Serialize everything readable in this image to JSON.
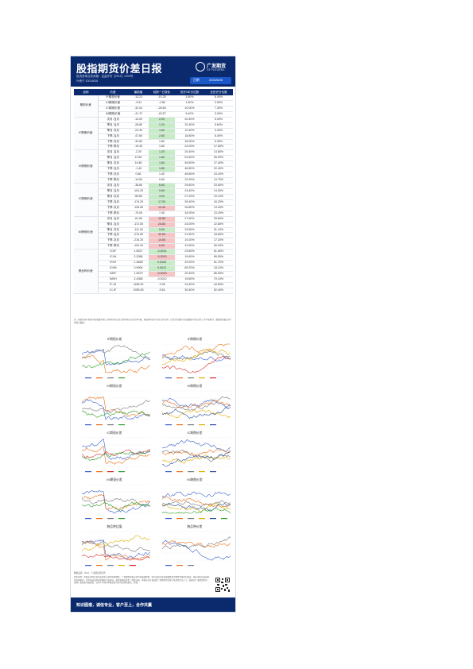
{
  "header": {
    "title": "股指期货价差日报",
    "logo_name": "广发期货",
    "logo_sub": "GF FUTURES",
    "sub1": "投资咨询业务资格：证监许可【2011】1292号",
    "sub2": "叶倩宁 Z0016628",
    "date_label": "日期",
    "date_value": "2025/6/26"
  },
  "table": {
    "columns": [
      "品种",
      "价差",
      "最新值",
      "较前一日变化",
      "历史1年分位数",
      "全历史分位数"
    ],
    "groups": [
      {
        "name": "期现价差",
        "rows": [
          [
            "IF期现价差",
            "-13.21",
            "-10.25",
            "1.60%",
            "6.40%",
            ""
          ],
          [
            "IH期现价差",
            "-3.51",
            "-2.88",
            "1.60%",
            "3.90%",
            ""
          ],
          [
            "IC期现价差",
            "-32.04",
            "-28.65",
            "10.00%",
            "7.30%",
            ""
          ],
          [
            "IM期现价差",
            "-41.72",
            "-43.57",
            "5.40%",
            "3.00%",
            ""
          ]
        ]
      },
      {
        "name": "IF跨期价差",
        "rows": [
          [
            "次月-当月",
            "-14.00",
            "2.00",
            "20.40%",
            "5.40%",
            "g"
          ],
          [
            "季月-当月",
            "-28.80",
            "1.20",
            "20.40%",
            "5.60%",
            "g"
          ],
          [
            "季月-次月",
            "-24.40",
            "1.60",
            "10.40%",
            "3.40%",
            "g"
          ],
          [
            "下季-当月",
            "-47.60",
            "2.60",
            "18.80%",
            "6.40%",
            "g"
          ],
          [
            "下季-次月",
            "-33.60",
            "1.80",
            "16.00%",
            "5.30%",
            ""
          ],
          [
            "下季-季月",
            "-19.40",
            "1.80",
            "24.00%",
            "17.80%",
            ""
          ]
        ]
      },
      {
        "name": "IH跨期价差",
        "rows": [
          [
            "次月-当月",
            "-2.20",
            "1.20",
            "20.40%",
            "14.80%",
            "g"
          ],
          [
            "季月-当月",
            "12.60",
            "1.80",
            "51.60%",
            "26.00%",
            "g"
          ],
          [
            "季月-次月",
            "14.80",
            "1.60",
            "49.60%",
            "27.40%",
            "g"
          ],
          [
            "下季-当月",
            "-1.40",
            "1.80",
            "46.80%",
            "22.40%",
            "g"
          ],
          [
            "下季-次月",
            "0.80",
            "1.40",
            "46.80%",
            "24.20%",
            ""
          ],
          [
            "下季-季月",
            "-14.00",
            "0.60",
            "22.00%",
            "13.70%",
            ""
          ]
        ]
      },
      {
        "name": "IC跨期价差",
        "rows": [
          [
            "次月-当月",
            "-38.60",
            "6.60",
            "29.60%",
            "23.60%",
            "g"
          ],
          [
            "季月-当月",
            "-104.20",
            "9.60",
            "24.40%",
            "14.00%",
            "g"
          ],
          [
            "季月-次月",
            "-65.60",
            "3.00",
            "27.20%",
            "19.10%",
            "g"
          ],
          [
            "下季-当月",
            "-174.20",
            "17.00",
            "26.40%",
            "16.20%",
            "g"
          ],
          [
            "下季-次月",
            "-135.60",
            "10.40",
            "26.80%",
            "13.30%",
            "r"
          ],
          [
            "下季-季月",
            "-70.00",
            "7.40",
            "34.00%",
            "23.20%",
            ""
          ]
        ]
      },
      {
        "name": "IM跨期价差",
        "rows": [
          [
            "次月-当月",
            "-61.60",
            "16.80",
            "27.60%",
            "25.60%",
            "r"
          ],
          [
            "季月-当月",
            "-172.60",
            "25.80",
            "24.00%",
            "22.80%",
            "r"
          ],
          [
            "季月-次月",
            "-111.00",
            "9.00",
            "33.60%",
            "31.10%",
            "g"
          ],
          [
            "下季-当月",
            "-276.80",
            "32.60",
            "21.60%",
            "18.80%",
            "r"
          ],
          [
            "下季-次月",
            "-215.20",
            "15.80",
            "19.20%",
            "17.20%",
            "r"
          ],
          [
            "下季-季月",
            "-104.20",
            "6.80",
            "31.60%",
            "26.20%",
            "r"
          ]
        ]
      },
      {
        "name": "跨品种价差",
        "rows": [
          [
            "IC/IF",
            "1.5027",
            "-0.0021",
            "23.60%",
            "61.50%",
            "g"
          ],
          [
            "IC/IH",
            "2.2086",
            "-0.0010",
            "19.60%",
            "65.50%",
            "r"
          ],
          [
            "IF/IH",
            "1.4698",
            "0.0005",
            "29.20%",
            "51.70%",
            "g"
          ],
          [
            "IC/IM",
            "0.9064",
            "0.0012",
            "69.20%",
            "18.10%",
            "g"
          ],
          [
            "IM/IF",
            "1.6579",
            "-0.0024",
            "20.40%",
            "66.00%",
            "r"
          ],
          [
            "IM/IH",
            "2.4368",
            "-0.0012",
            "19.60%",
            "70.10%",
            ""
          ],
          [
            "IF-IH",
            "1156.49",
            "-3.35",
            "24.40%",
            "44.50%",
            ""
          ],
          [
            "IC-IF",
            "1935.05",
            "-5.54",
            "30.40%",
            "52.40%",
            ""
          ]
        ]
      }
    ]
  },
  "note": "注：期现价差=期货价格-指数价格；跨期价差=远月合约价格-近月合约价格；跨品种价差以当月合约计算。历史分位数以对应数据序列自合约上市以来统计，数据更新截至前一交易日收盘。",
  "charts": [
    {
      "title": "IF期现价差",
      "colors": [
        "#3a5fcd",
        "#e8701a",
        "#7a7a7a",
        "#2ca02c"
      ]
    },
    {
      "title": "IF跨期价差",
      "colors": [
        "#3a5fcd",
        "#e8701a",
        "#7a7a7a",
        "#e0b000",
        "#d62728"
      ]
    },
    {
      "title": "IH期现价差",
      "colors": [
        "#3a5fcd",
        "#e8701a",
        "#7a7a7a",
        "#2ca02c"
      ]
    },
    {
      "title": "IH跨期价差",
      "colors": [
        "#3a5fcd",
        "#e8701a",
        "#7a7a7a",
        "#e0b000",
        "#2a4f9e"
      ]
    },
    {
      "title": "IC期现价差",
      "colors": [
        "#3a5fcd",
        "#e8701a",
        "#d62728",
        "#2ca02c"
      ]
    },
    {
      "title": "IC跨期价差",
      "colors": [
        "#3a5fcd",
        "#e8701a",
        "#7a7a7a",
        "#e0b000",
        "#2a4f9e"
      ]
    },
    {
      "title": "IM期现价差",
      "colors": [
        "#3a5fcd",
        "#e8701a",
        "#7a7a7a",
        "#2ca02c"
      ]
    },
    {
      "title": "IM跨期价差",
      "colors": [
        "#3a5fcd",
        "#e8701a",
        "#7a7a7a",
        "#e0b000",
        "#2a4f9e",
        "#2ca02c"
      ]
    },
    {
      "title": "跨品种比值",
      "colors": [
        "#3a5fcd",
        "#e8701a",
        "#7a7a7a",
        "#e0b000",
        "#d62728"
      ]
    },
    {
      "title": "跨品种价差",
      "colors": [
        "#3a5fcd",
        "#e8701a",
        "#7a7a7a"
      ]
    }
  ],
  "source": "数据来源：Wind、广发期货研究所",
  "disclaimer": "免责声明：本报告中的信息均来源于公开可获得资料，广发期货有限公司力求准确可靠，但对这些信息的准确性及完整性不做任何保证。报告中的内容和意见仅供参考，并不构成对所述品种的买卖建议。投资者据此投资，风险自担。本报告旨在发送给广发期货特定客户及其他专业人士，版权归广发期货所有，未经广发期货书面授权，任何人不得对本报告进行任何形式的发布、复制。",
  "footer": {
    "slogan": "知识图谱，诚信专业，客户至上，合作共赢"
  }
}
